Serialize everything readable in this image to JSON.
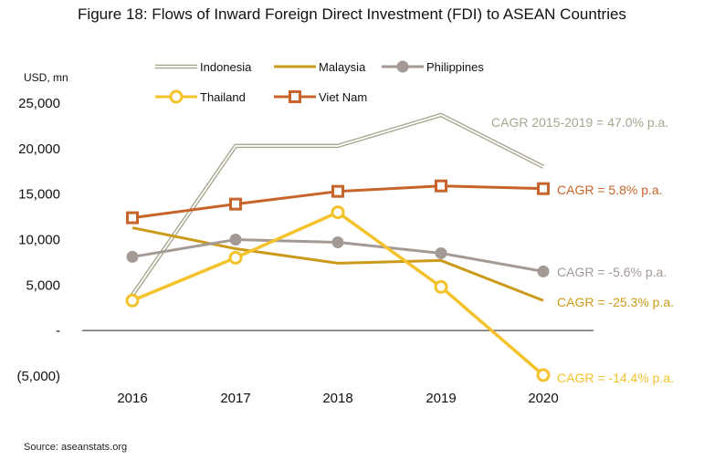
{
  "chart_data": {
    "type": "line",
    "title": "Figure 18: Flows of Inward Foreign Direct Investment (FDI) to ASEAN Countries",
    "ylabel": "USD, mn",
    "source": "Source: aseanstats.org",
    "x": [
      "2016",
      "2017",
      "2018",
      "2019",
      "2020"
    ],
    "ylim": [
      -5000,
      25000
    ],
    "y_ticks": [
      {
        "value": 25000,
        "label": "25,000"
      },
      {
        "value": 20000,
        "label": "20,000"
      },
      {
        "value": 15000,
        "label": "15,000"
      },
      {
        "value": 10000,
        "label": "10,000"
      },
      {
        "value": 5000,
        "label": "5,000"
      },
      {
        "value": 0,
        "label": "-"
      },
      {
        "value": -5000,
        "label": "(5,000)"
      }
    ],
    "grid": false,
    "legend_position": "top",
    "series": [
      {
        "name": "Indonesia",
        "style": "double",
        "color": "#a8a58e",
        "values": [
          3900,
          20300,
          20300,
          23700,
          18000
        ],
        "annotation": "CAGR 2015-2019  = 47.0% p.a."
      },
      {
        "name": "Malaysia",
        "style": "plain",
        "color": "#cc9a1a",
        "values": [
          11300,
          9000,
          7400,
          7700,
          3300
        ],
        "annotation": "CAGR = -25.3% p.a."
      },
      {
        "name": "Philippines",
        "style": "circle",
        "color": "#a39a96",
        "values": [
          8100,
          10000,
          9700,
          8500,
          6500
        ],
        "annotation": "CAGR = -5.6% p.a."
      },
      {
        "name": "Thailand",
        "style": "ring",
        "color": "#f4c22b",
        "values": [
          3300,
          8000,
          13000,
          4800,
          -4900
        ],
        "annotation": "CAGR = -14.4% p.a."
      },
      {
        "name": "Viet Nam",
        "style": "square",
        "color": "#c8642a",
        "values": [
          12400,
          13900,
          15300,
          15900,
          15600
        ],
        "annotation": "CAGR = 5.8% p.a."
      }
    ]
  }
}
